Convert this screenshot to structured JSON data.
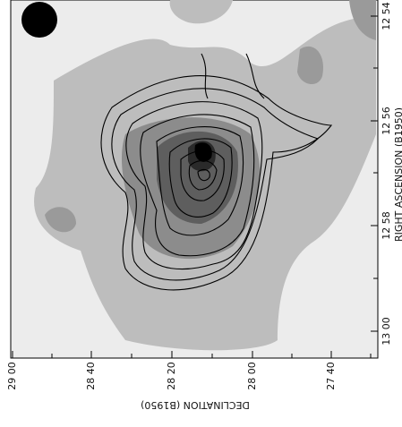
{
  "right_axis": {
    "label": "RIGHT ASCENSION (B1950)",
    "ticks": [
      "12 54",
      "12 56",
      "12 58",
      "13 00"
    ]
  },
  "bottom_axis": {
    "label": "DECLINATION (B1950)",
    "ticks": [
      "29 00",
      "28 40",
      "28 20",
      "28 00",
      "27 40"
    ]
  }
}
